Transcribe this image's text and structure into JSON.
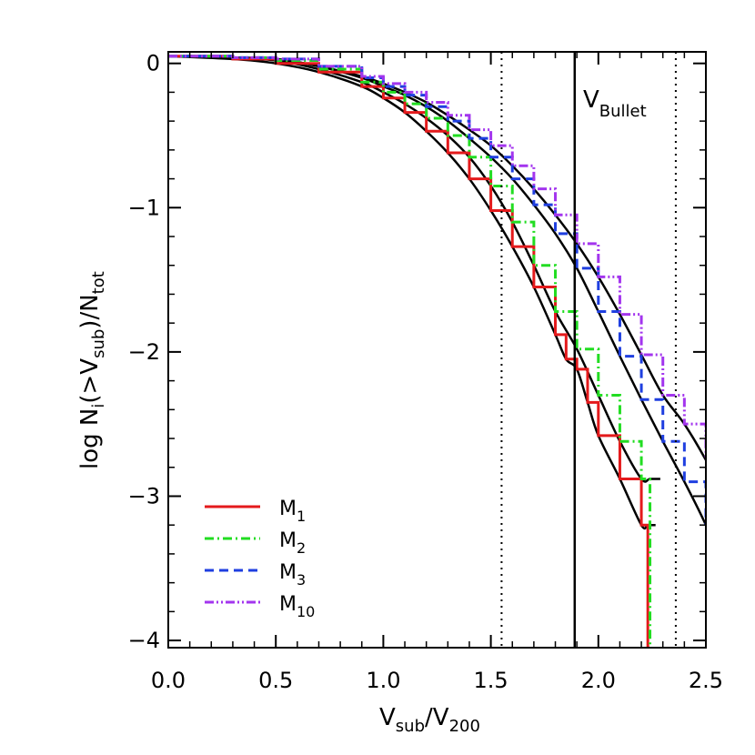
{
  "chart_data": {
    "type": "line",
    "xlabel": "V_sub/V_200",
    "ylabel": "log N_i(>V_sub)/N_tot",
    "xlim": [
      0.0,
      2.5
    ],
    "ylim": [
      -4.05,
      0.08
    ],
    "x_ticks": [
      "0.0",
      "0.5",
      "1.0",
      "1.5",
      "2.0",
      "2.5"
    ],
    "y_ticks": [
      "0",
      "−1",
      "−2",
      "−3",
      "−4"
    ],
    "grid": false,
    "legend_position": "bottom-left",
    "annotation": {
      "text": "V",
      "subscript": "Bullet"
    },
    "vertical_lines": [
      {
        "x": 1.55,
        "style": "dotted"
      },
      {
        "x": 1.89,
        "style": "solid"
      },
      {
        "x": 2.36,
        "style": "dotted"
      },
      {
        "x": 2.5,
        "style": "dotted"
      }
    ],
    "series": [
      {
        "name": "M_1",
        "color": "#e41a1c",
        "style": "solid",
        "x": [
          0.0,
          0.3,
          0.5,
          0.7,
          0.9,
          1.0,
          1.1,
          1.2,
          1.3,
          1.4,
          1.5,
          1.6,
          1.7,
          1.8,
          1.85,
          1.9,
          1.95,
          2.0,
          2.1,
          2.2,
          2.23,
          2.23
        ],
        "y": [
          0.05,
          0.03,
          0.0,
          -0.06,
          -0.16,
          -0.24,
          -0.34,
          -0.47,
          -0.62,
          -0.8,
          -1.02,
          -1.27,
          -1.55,
          -1.88,
          -2.05,
          -2.12,
          -2.35,
          -2.58,
          -2.88,
          -3.2,
          -3.2,
          -4.05
        ]
      },
      {
        "name": "M_2",
        "color": "#22dd22",
        "style": "dash-dot",
        "x": [
          0.0,
          0.3,
          0.5,
          0.7,
          0.9,
          1.0,
          1.1,
          1.2,
          1.3,
          1.4,
          1.5,
          1.6,
          1.7,
          1.8,
          1.9,
          2.0,
          2.1,
          2.2,
          2.24,
          2.24
        ],
        "y": [
          0.05,
          0.04,
          0.02,
          -0.04,
          -0.13,
          -0.2,
          -0.28,
          -0.38,
          -0.5,
          -0.65,
          -0.85,
          -1.1,
          -1.4,
          -1.72,
          -1.98,
          -2.3,
          -2.62,
          -2.88,
          -2.88,
          -4.05
        ]
      },
      {
        "name": "M_3",
        "color": "#1f3fe0",
        "style": "dashed",
        "x": [
          0.0,
          0.3,
          0.5,
          0.7,
          0.9,
          1.0,
          1.1,
          1.2,
          1.3,
          1.4,
          1.5,
          1.6,
          1.7,
          1.8,
          1.9,
          2.0,
          2.1,
          2.2,
          2.3,
          2.4,
          2.5
        ],
        "y": [
          0.05,
          0.04,
          0.03,
          -0.02,
          -0.1,
          -0.16,
          -0.22,
          -0.3,
          -0.4,
          -0.52,
          -0.65,
          -0.8,
          -0.98,
          -1.18,
          -1.42,
          -1.72,
          -2.03,
          -2.33,
          -2.62,
          -2.9,
          -3.2
        ]
      },
      {
        "name": "M_10",
        "color": "#a335ee",
        "style": "dash-dot-dot",
        "x": [
          0.0,
          0.3,
          0.5,
          0.7,
          0.9,
          1.0,
          1.1,
          1.2,
          1.3,
          1.4,
          1.5,
          1.6,
          1.7,
          1.8,
          1.9,
          2.0,
          2.1,
          2.2,
          2.3,
          2.4,
          2.5
        ],
        "y": [
          0.05,
          0.04,
          0.03,
          -0.02,
          -0.09,
          -0.14,
          -0.2,
          -0.27,
          -0.36,
          -0.46,
          -0.57,
          -0.71,
          -0.87,
          -1.05,
          -1.25,
          -1.48,
          -1.74,
          -2.02,
          -2.3,
          -2.5,
          -2.75
        ]
      }
    ],
    "fit_curves_color": "#000000"
  }
}
